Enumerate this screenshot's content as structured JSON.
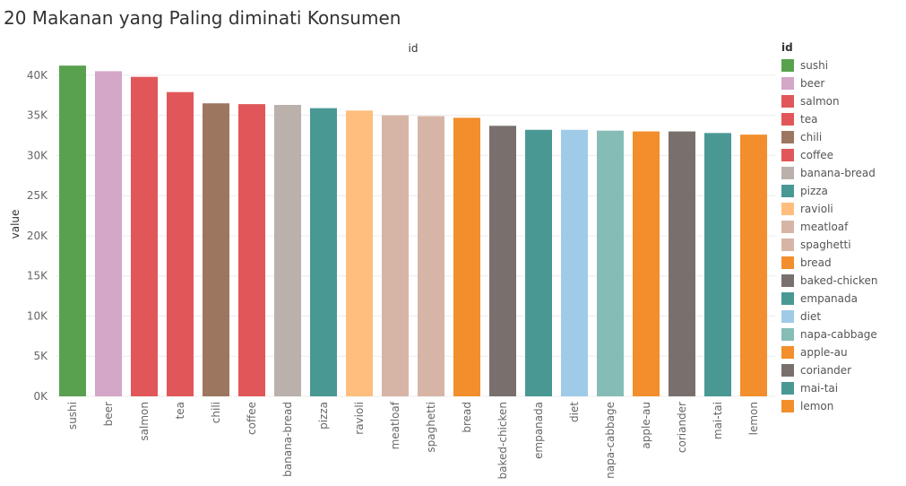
{
  "title": "20 Makanan yang Paling diminati Konsumen",
  "chart_data": {
    "type": "bar",
    "title": "20 Makanan yang Paling diminati Konsumen",
    "xlabel": "id",
    "ylabel": "value",
    "ylim": [
      0,
      42000
    ],
    "yticks": [
      0,
      5000,
      10000,
      15000,
      20000,
      25000,
      30000,
      35000,
      40000
    ],
    "ytick_labels": [
      "0K",
      "5K",
      "10K",
      "15K",
      "20K",
      "25K",
      "30K",
      "35K",
      "40K"
    ],
    "grid": true,
    "legend": {
      "title": "id",
      "placement": "right"
    },
    "categories": [
      "sushi",
      "beer",
      "salmon",
      "tea",
      "chili",
      "coffee",
      "banana-bread",
      "pizza",
      "ravioli",
      "meatloaf",
      "spaghetti",
      "bread",
      "baked-chicken",
      "empanada",
      "diet",
      "napa-cabbage",
      "apple-au",
      "coriander",
      "mai-tai",
      "lemon"
    ],
    "values": [
      41200,
      40500,
      39800,
      37900,
      36500,
      36400,
      36300,
      35900,
      35600,
      35000,
      34900,
      34700,
      33700,
      33200,
      33200,
      33100,
      33000,
      33000,
      32800,
      32600
    ],
    "colors": [
      "#59a14f",
      "#d4a6c8",
      "#e15759",
      "#e15759",
      "#9d7660",
      "#e15759",
      "#bab0ac",
      "#499894",
      "#ffbe7d",
      "#d7b5a6",
      "#d7b5a6",
      "#f28e2b",
      "#79706e",
      "#499894",
      "#a0cbe8",
      "#86bcb6",
      "#f28e2b",
      "#79706e",
      "#499894",
      "#f28e2b"
    ]
  }
}
